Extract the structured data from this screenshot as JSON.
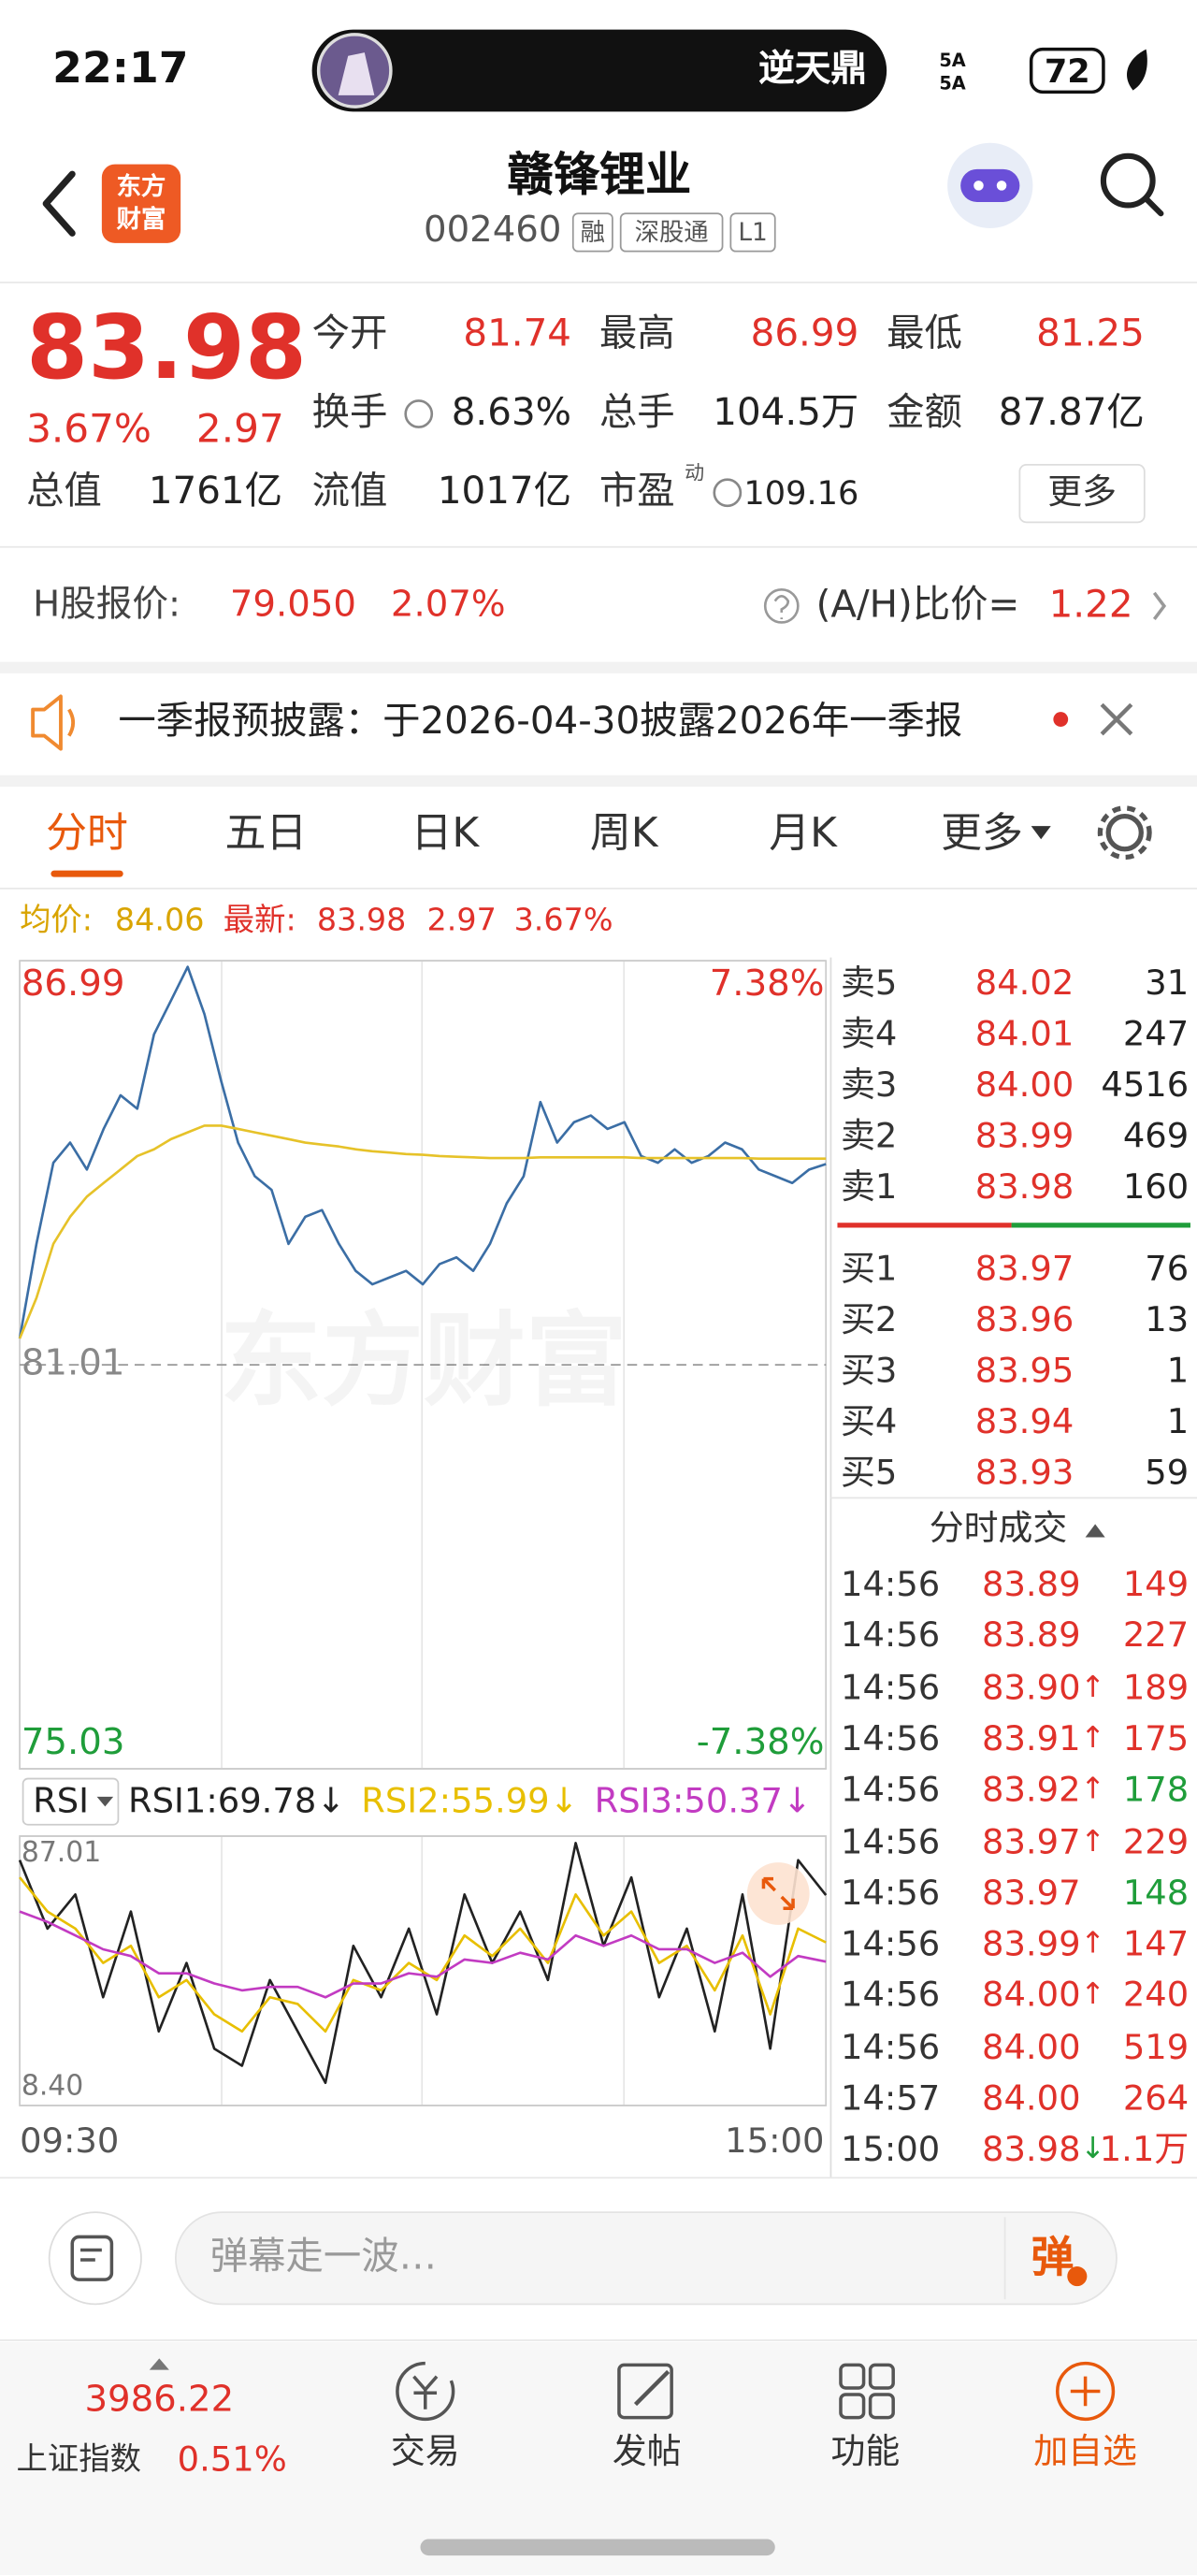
{
  "status_bar": {
    "time": "22:17",
    "live_title": "逆天鼎",
    "signal": [
      "5A",
      "5A"
    ],
    "battery": "72"
  },
  "header": {
    "logo": [
      "东方",
      "财富"
    ],
    "title": "赣锋锂业",
    "code": "002460",
    "tags": [
      "融",
      "深股通",
      "L1"
    ]
  },
  "quote": {
    "price": "83.98",
    "change_pct": "3.67%",
    "change": "2.97",
    "more": "更多",
    "fields": [
      {
        "label": "今开",
        "value": "81.74",
        "color": "#e0312a"
      },
      {
        "label": "最高",
        "value": "86.99",
        "color": "#e0312a"
      },
      {
        "label": "最低",
        "value": "81.25",
        "color": "#e0312a"
      },
      {
        "label": "换手",
        "value": "8.63%",
        "color": "#222222"
      },
      {
        "label": "总手",
        "value": "104.5万",
        "color": "#222222"
      },
      {
        "label": "金额",
        "value": "87.87亿",
        "color": "#222222"
      },
      {
        "label": "总值",
        "value": "1761亿",
        "color": "#222222"
      },
      {
        "label": "流值",
        "value": "1017亿",
        "color": "#222222"
      },
      {
        "label": "市盈",
        "sup": "动",
        "value": "109.16",
        "color": "#222222"
      }
    ]
  },
  "h_share": {
    "label": "H股报价:",
    "price": "79.050",
    "change_pct": "2.07%",
    "ratio_label": "(A/H)比价=",
    "ratio": "1.22"
  },
  "notice": {
    "text": "一季报预披露：于2026-04-30披露2026年一季报"
  },
  "tabs": {
    "items": [
      "分时",
      "五日",
      "日K",
      "周K",
      "月K",
      "更多"
    ],
    "active": 0
  },
  "price_info": {
    "avg_label": "均价:",
    "avg": "84.06",
    "latest_label": "最新:",
    "latest": "83.98",
    "change": "2.97",
    "change_pct": "3.67%"
  },
  "price_chart": {
    "type": "line",
    "watermark": "东方财富",
    "grid": true,
    "ylim": [
      75.03,
      86.99
    ],
    "yticks": [
      86.99,
      81.01,
      75.03
    ],
    "y2lim": [
      -7.38,
      7.38
    ],
    "y2ticks": [
      {
        "value": 7.38,
        "label": "7.38%"
      },
      {
        "value": -7.38,
        "label": "-7.38%"
      }
    ],
    "series": [
      {
        "color": "#3b6ea5",
        "values": [
          81.4,
          82.8,
          84.0,
          84.3,
          83.9,
          84.5,
          85.0,
          84.8,
          85.9,
          86.4,
          86.9,
          86.2,
          85.2,
          84.3,
          83.8,
          83.6,
          82.8,
          83.2,
          83.3,
          82.8,
          82.4,
          82.2,
          82.3,
          82.4,
          82.2,
          82.5,
          82.6,
          82.4,
          82.8,
          83.4,
          83.8,
          84.9,
          84.3,
          84.6,
          84.7,
          84.5,
          84.6,
          84.1,
          84.0,
          84.2,
          84.0,
          84.1,
          84.3,
          84.2,
          83.9,
          83.8,
          83.7,
          83.9,
          83.98
        ]
      },
      {
        "color": "#e6c229",
        "values": [
          81.4,
          82.0,
          82.8,
          83.2,
          83.5,
          83.7,
          83.9,
          84.1,
          84.2,
          84.35,
          84.45,
          84.55,
          84.55,
          84.5,
          84.45,
          84.4,
          84.35,
          84.3,
          84.27,
          84.24,
          84.2,
          84.17,
          84.15,
          84.13,
          84.12,
          84.1,
          84.09,
          84.08,
          84.07,
          84.07,
          84.07,
          84.08,
          84.08,
          84.08,
          84.08,
          84.08,
          84.08,
          84.07,
          84.07,
          84.07,
          84.07,
          84.07,
          84.07,
          84.07,
          84.06,
          84.06,
          84.06,
          84.06,
          84.06
        ]
      }
    ]
  },
  "rsi_chart": {
    "type": "line",
    "indicator": "RSI",
    "separator": ":",
    "ylim": [
      8.4,
      87.01
    ],
    "yticks": [
      87.01,
      {
        "value": 8.4,
        "label": "8.40"
      }
    ],
    "series": [
      {
        "name": "RSI1",
        "latest": 69.78,
        "trend": "↓",
        "color": "#222222",
        "values": [
          80,
          60,
          70,
          40,
          65,
          30,
          50,
          25,
          20,
          45,
          30,
          15,
          55,
          40,
          60,
          35,
          70,
          50,
          65,
          45,
          85,
          55,
          75,
          40,
          60,
          30,
          70,
          25,
          80,
          69.78
        ]
      },
      {
        "name": "RSI2",
        "latest": 55.99,
        "trend": "↓",
        "color": "#e8bf00",
        "values": [
          75,
          65,
          60,
          50,
          55,
          40,
          45,
          35,
          30,
          40,
          38,
          30,
          45,
          42,
          50,
          45,
          58,
          52,
          60,
          50,
          70,
          58,
          65,
          50,
          55,
          42,
          58,
          35,
          60,
          55.99
        ]
      },
      {
        "name": "RSI3",
        "latest": 50.37,
        "trend": "↓",
        "color": "#c23bc2",
        "values": [
          65,
          62,
          58,
          54,
          52,
          47,
          47,
          44,
          42,
          43,
          43,
          40,
          44,
          44,
          47,
          46,
          51,
          50,
          53,
          51,
          58,
          55,
          58,
          54,
          54,
          50,
          53,
          46,
          52,
          50.37
        ]
      }
    ]
  },
  "time_axis": [
    "09:30",
    "15:00"
  ],
  "order_book": {
    "asks": [
      {
        "label": "卖5",
        "price": "84.02",
        "volume": "31"
      },
      {
        "label": "卖4",
        "price": "84.01",
        "volume": "247"
      },
      {
        "label": "卖3",
        "price": "84.00",
        "volume": "4516"
      },
      {
        "label": "卖2",
        "price": "83.99",
        "volume": "469"
      },
      {
        "label": "卖1",
        "price": "83.98",
        "volume": "160"
      }
    ],
    "bids": [
      {
        "label": "买1",
        "price": "83.97",
        "volume": "76"
      },
      {
        "label": "买2",
        "price": "83.96",
        "volume": "13"
      },
      {
        "label": "买3",
        "price": "83.95",
        "volume": "1"
      },
      {
        "label": "买4",
        "price": "83.94",
        "volume": "1"
      },
      {
        "label": "买5",
        "price": "83.93",
        "volume": "59"
      }
    ]
  },
  "trades": {
    "title": "分时成交",
    "rows": [
      {
        "time": "14:56",
        "price": "83.89",
        "volume": "149",
        "volume_color": "#e0312a"
      },
      {
        "time": "14:56",
        "price": "83.89",
        "volume": "227",
        "volume_color": "#e0312a"
      },
      {
        "time": "14:56",
        "price": "83.90",
        "arrow": "↑",
        "arrow_color": "#e0312a",
        "volume": "189",
        "volume_color": "#e0312a"
      },
      {
        "time": "14:56",
        "price": "83.91",
        "arrow": "↑",
        "arrow_color": "#e0312a",
        "volume": "175",
        "volume_color": "#e0312a"
      },
      {
        "time": "14:56",
        "price": "83.92",
        "arrow": "↑",
        "arrow_color": "#e0312a",
        "volume": "178",
        "volume_color": "#1f9d3a"
      },
      {
        "time": "14:56",
        "price": "83.97",
        "arrow": "↑",
        "arrow_color": "#e0312a",
        "volume": "229",
        "volume_color": "#e0312a"
      },
      {
        "time": "14:56",
        "price": "83.97",
        "volume": "148",
        "volume_color": "#1f9d3a"
      },
      {
        "time": "14:56",
        "price": "83.99",
        "arrow": "↑",
        "arrow_color": "#e0312a",
        "volume": "147",
        "volume_color": "#e0312a"
      },
      {
        "time": "14:56",
        "price": "84.00",
        "arrow": "↑",
        "arrow_color": "#e0312a",
        "volume": "240",
        "volume_color": "#e0312a"
      },
      {
        "time": "14:56",
        "price": "84.00",
        "volume": "519",
        "volume_color": "#e0312a"
      },
      {
        "time": "14:57",
        "price": "84.00",
        "volume": "264",
        "volume_color": "#e0312a"
      },
      {
        "time": "15:00",
        "price": "83.98",
        "arrow": "↓",
        "arrow_color": "#1f9d3a",
        "volume": "1.1万",
        "volume_color": "#e0312a"
      }
    ]
  },
  "comment": {
    "placeholder": "弹幕走一波…",
    "button": "弹"
  },
  "bottom_nav": {
    "index_value": "3986.22",
    "index_name": "上证指数",
    "index_change": "0.51%",
    "items": [
      "交易",
      "发帖",
      "功能",
      "加自选"
    ]
  }
}
